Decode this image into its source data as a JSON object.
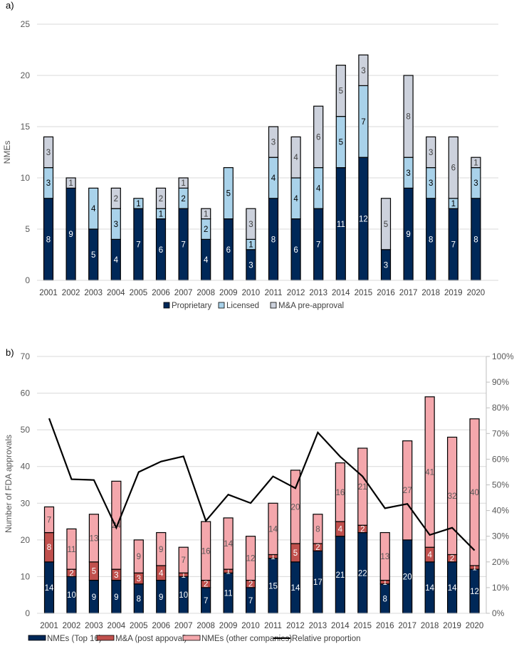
{
  "chart_data": [
    {
      "type": "bar",
      "stacked": true,
      "panel_label": "a)",
      "title": "",
      "xlabel": "",
      "ylabel": "NMEs",
      "ylim": [
        0,
        25
      ],
      "yticks": [
        0,
        5,
        10,
        15,
        20,
        25
      ],
      "grid": true,
      "legend_position": "bottom",
      "categories": [
        "2001",
        "2002",
        "2003",
        "2004",
        "2005",
        "2006",
        "2007",
        "2008",
        "2009",
        "2010",
        "2011",
        "2012",
        "2013",
        "2014",
        "2015",
        "2016",
        "2017",
        "2018",
        "2019",
        "2020"
      ],
      "series": [
        {
          "name": "Proprietary",
          "color": "#002858",
          "label_color": "#ffffff",
          "values": [
            8,
            9,
            5,
            4,
            7,
            6,
            7,
            4,
            6,
            3,
            8,
            6,
            7,
            11,
            12,
            3,
            9,
            8,
            7,
            8
          ]
        },
        {
          "name": "Licensed",
          "color": "#a9d2ea",
          "label_color": "#000000",
          "values": [
            3,
            0,
            4,
            3,
            1,
            1,
            2,
            2,
            5,
            1,
            4,
            4,
            4,
            5,
            7,
            0,
            3,
            3,
            1,
            3
          ]
        },
        {
          "name": "M&A pre-approval",
          "color": "#ccd1dc",
          "label_color": "#404040",
          "values": [
            3,
            1,
            0,
            2,
            0,
            2,
            1,
            1,
            0,
            3,
            3,
            4,
            6,
            5,
            3,
            5,
            8,
            3,
            6,
            1
          ]
        }
      ]
    },
    {
      "type": "bar",
      "stacked": true,
      "panel_label": "b)",
      "title": "",
      "xlabel": "",
      "ylabel": "Number of FDA approvals",
      "ylim": [
        0,
        70
      ],
      "yticks": [
        0,
        10,
        20,
        30,
        40,
        50,
        60,
        70
      ],
      "y2lim": [
        0,
        100
      ],
      "y2ticks": [
        "0%",
        "10%",
        "20%",
        "30%",
        "40%",
        "50%",
        "60%",
        "70%",
        "80%",
        "90%",
        "100%"
      ],
      "grid": true,
      "legend_position": "bottom",
      "categories": [
        "2001",
        "2002",
        "2003",
        "2004",
        "2005",
        "2006",
        "2007",
        "2008",
        "2009",
        "2010",
        "2011",
        "2012",
        "2013",
        "2014",
        "2015",
        "2016",
        "2017",
        "2018",
        "2019",
        "2020"
      ],
      "series": [
        {
          "name": "NMEs (Top 16)",
          "color": "#002858",
          "label_color": "#ffffff",
          "values": [
            14,
            10,
            9,
            9,
            8,
            9,
            10,
            7,
            11,
            7,
            15,
            14,
            17,
            21,
            22,
            8,
            20,
            14,
            14,
            12
          ]
        },
        {
          "name": "M&A (post appoval)",
          "color": "#c0504d",
          "label_color": "#ffffff",
          "values": [
            8,
            2,
            5,
            3,
            3,
            4,
            1,
            2,
            1,
            2,
            1,
            5,
            2,
            4,
            2,
            1,
            0,
            4,
            2,
            1
          ]
        },
        {
          "name": "NMEs (other companies)",
          "color": "#f4a7ac",
          "label_color": "#595959",
          "values": [
            7,
            11,
            13,
            24,
            9,
            9,
            7,
            16,
            14,
            12,
            14,
            20,
            8,
            16,
            21,
            13,
            27,
            41,
            32,
            40
          ]
        }
      ],
      "line_series": {
        "name": "Relative proportion",
        "color": "#000000",
        "axis": "right",
        "values_percent": [
          75.9,
          52.2,
          51.9,
          33.3,
          55.0,
          59.1,
          61.1,
          36.0,
          46.2,
          42.9,
          53.3,
          48.7,
          70.4,
          61.0,
          53.3,
          40.9,
          42.6,
          30.5,
          33.3,
          24.5
        ]
      }
    }
  ]
}
